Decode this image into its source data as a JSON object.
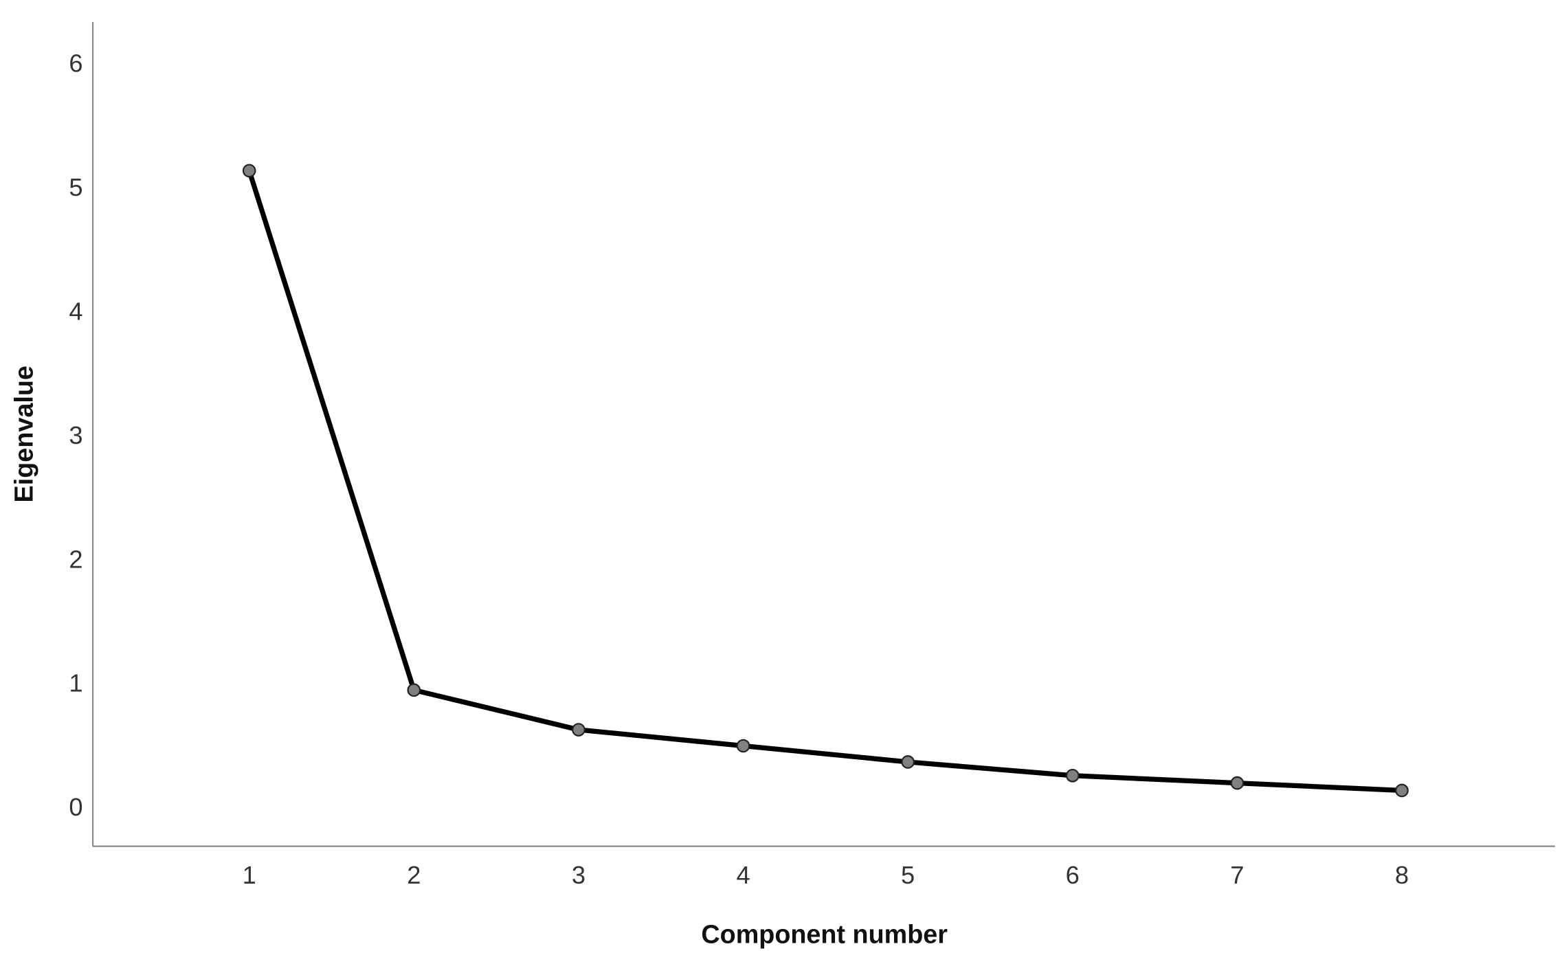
{
  "chart_data": {
    "type": "line",
    "x_label": "Component number",
    "y_label": "Eigenvalue",
    "x": [
      1,
      2,
      3,
      4,
      5,
      6,
      7,
      8
    ],
    "series": [
      {
        "color": "#000000",
        "marker_color": "#808080",
        "values": [
          5.15,
          0.96,
          0.64,
          0.51,
          0.38,
          0.27,
          0.21,
          0.15
        ]
      }
    ],
    "xlim": [
      0.05,
      8.93
    ],
    "xticks": [
      1,
      2,
      3,
      4,
      5,
      6,
      7,
      8
    ],
    "ylim": [
      -0.3,
      6.35
    ],
    "yticks": [
      0,
      1,
      2,
      3,
      4,
      5,
      6
    ],
    "grid": false
  }
}
